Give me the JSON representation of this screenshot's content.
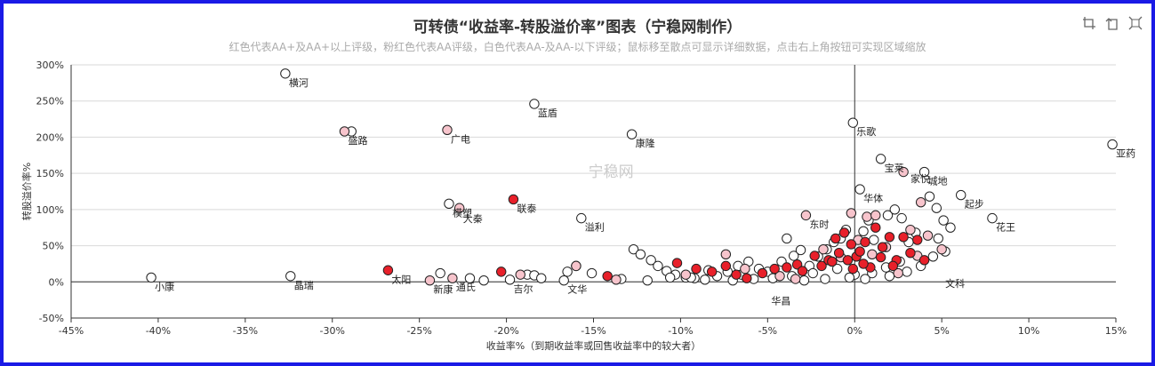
{
  "header": {
    "title": "可转债“收益率-转股溢价率”图表（宁稳网制作）",
    "subtitle": "红色代表AA+及AA+以上评级，粉红色代表AA评级，白色代表AA-及AA-以下评级；鼠标移至散点可显示详细数据，点击右上角按钮可实现区域缩放"
  },
  "toolbox": {
    "icons": [
      "zoom-area-icon",
      "zoom-reset-icon",
      "restore-icon"
    ]
  },
  "watermark": "宁稳网",
  "colors": {
    "aa_plus": "#e8202a",
    "aa": "#f7c4cc",
    "aa_minus": "#ffffff",
    "stroke": "#222222",
    "frame": "#1a1ae6"
  },
  "chart_data": {
    "type": "scatter",
    "xlabel": "收益率%（到期收益率或回售收益率中的较大者）",
    "ylabel": "转股溢价率%",
    "xlim": [
      -45,
      15
    ],
    "ylim": [
      -50,
      300
    ],
    "x_ticks": [
      "-45%",
      "-40%",
      "-35%",
      "-30%",
      "-25%",
      "-20%",
      "-15%",
      "-10%",
      "-5%",
      "0%",
      "5%",
      "10%",
      "15%"
    ],
    "y_ticks": [
      "300%",
      "250%",
      "200%",
      "150%",
      "100%",
      "50%",
      "0%",
      "-50%"
    ],
    "grid": true,
    "series": [
      {
        "rating": "AA+",
        "points": [
          [
            -26.8,
            16
          ],
          [
            -20.3,
            14
          ],
          [
            -19.6,
            114
          ],
          [
            -14.2,
            8
          ],
          [
            -10.2,
            26
          ],
          [
            -9.1,
            18
          ],
          [
            -8.2,
            14
          ],
          [
            -7.4,
            22
          ],
          [
            -6.8,
            10
          ],
          [
            -6.2,
            5
          ],
          [
            -5.3,
            12
          ],
          [
            -4.6,
            18
          ],
          [
            -3.9,
            20
          ],
          [
            -3.3,
            24
          ],
          [
            -3.0,
            15
          ],
          [
            -2.3,
            36
          ],
          [
            -1.9,
            22
          ],
          [
            -1.5,
            30
          ],
          [
            -1.1,
            60
          ],
          [
            -0.9,
            40
          ],
          [
            -0.6,
            68
          ],
          [
            -0.4,
            30
          ],
          [
            -0.2,
            52
          ],
          [
            0.1,
            35
          ],
          [
            0.3,
            42
          ],
          [
            0.6,
            55
          ],
          [
            0.9,
            20
          ],
          [
            1.2,
            75
          ],
          [
            1.6,
            48
          ],
          [
            2.0,
            62
          ],
          [
            2.4,
            30
          ],
          [
            2.8,
            62
          ],
          [
            3.2,
            40
          ],
          [
            3.6,
            58
          ],
          [
            4.0,
            30
          ],
          [
            0.5,
            25
          ],
          [
            -1.3,
            28
          ],
          [
            1.5,
            34
          ],
          [
            -0.1,
            18
          ],
          [
            2.2,
            22
          ]
        ]
      },
      {
        "rating": "AA",
        "points": [
          [
            -29.3,
            208
          ],
          [
            -23.4,
            210
          ],
          [
            -22.7,
            102
          ],
          [
            -24.4,
            2
          ],
          [
            -23.1,
            5
          ],
          [
            -19.2,
            10
          ],
          [
            -16.0,
            22
          ],
          [
            -13.7,
            3
          ],
          [
            -9.7,
            10
          ],
          [
            -7.4,
            38
          ],
          [
            -6.3,
            18
          ],
          [
            -4.3,
            8
          ],
          [
            -2.8,
            92
          ],
          [
            -1.8,
            45
          ],
          [
            -1.3,
            28
          ],
          [
            -0.2,
            95
          ],
          [
            0.7,
            90
          ],
          [
            1.2,
            92
          ],
          [
            1.8,
            48
          ],
          [
            2.8,
            152
          ],
          [
            3.2,
            72
          ],
          [
            3.8,
            110
          ],
          [
            4.2,
            64
          ],
          [
            5.0,
            45
          ],
          [
            0.2,
            58
          ],
          [
            -0.8,
            34
          ],
          [
            2.5,
            12
          ],
          [
            1.0,
            38
          ],
          [
            -3.4,
            4
          ],
          [
            3.6,
            36
          ]
        ]
      },
      {
        "rating": "AA-",
        "points": [
          [
            -40.4,
            6
          ],
          [
            -32.7,
            288
          ],
          [
            -32.4,
            8
          ],
          [
            -28.9,
            208
          ],
          [
            -23.3,
            108
          ],
          [
            -23.8,
            12
          ],
          [
            -22.1,
            5
          ],
          [
            -21.3,
            2
          ],
          [
            -19.8,
            3
          ],
          [
            -18.8,
            10
          ],
          [
            -18.4,
            9
          ],
          [
            -18.0,
            5
          ],
          [
            -16.5,
            14
          ],
          [
            -16.0,
            22
          ],
          [
            -15.1,
            12
          ],
          [
            -16.7,
            2
          ],
          [
            -12.7,
            45
          ],
          [
            -12.3,
            38
          ],
          [
            -11.7,
            30
          ],
          [
            -11.3,
            22
          ],
          [
            -10.8,
            15
          ],
          [
            -10.3,
            10
          ],
          [
            -9.7,
            6
          ],
          [
            -9.2,
            5
          ],
          [
            -8.6,
            3
          ],
          [
            -7.9,
            8
          ],
          [
            -7.3,
            14
          ],
          [
            -6.7,
            22
          ],
          [
            -6.1,
            28
          ],
          [
            -5.5,
            18
          ],
          [
            -5.0,
            14
          ],
          [
            -4.2,
            28
          ],
          [
            -3.9,
            60
          ],
          [
            -3.5,
            36
          ],
          [
            -3.1,
            44
          ],
          [
            -2.6,
            22
          ],
          [
            -2.1,
            35
          ],
          [
            -1.6,
            45
          ],
          [
            -1.2,
            55
          ],
          [
            -0.8,
            60
          ],
          [
            -0.5,
            72
          ],
          [
            -0.1,
            220
          ],
          [
            0.3,
            128
          ],
          [
            0.5,
            70
          ],
          [
            0.8,
            85
          ],
          [
            1.1,
            58
          ],
          [
            1.5,
            170
          ],
          [
            1.9,
            92
          ],
          [
            2.3,
            100
          ],
          [
            2.7,
            88
          ],
          [
            3.1,
            55
          ],
          [
            3.5,
            68
          ],
          [
            4.0,
            152
          ],
          [
            4.3,
            118
          ],
          [
            4.7,
            102
          ],
          [
            5.1,
            85
          ],
          [
            5.5,
            75
          ],
          [
            6.1,
            120
          ],
          [
            7.9,
            88
          ],
          [
            14.8,
            190
          ],
          [
            -18.4,
            246
          ],
          [
            -12.8,
            204
          ],
          [
            -15.7,
            88
          ],
          [
            -9.4,
            6
          ],
          [
            -6.5,
            10
          ],
          [
            -8.4,
            16
          ],
          [
            -4.7,
            5
          ],
          [
            -2.4,
            12
          ],
          [
            -1.0,
            18
          ],
          [
            0.0,
            10
          ],
          [
            1.0,
            12
          ],
          [
            2.0,
            8
          ],
          [
            3.0,
            14
          ],
          [
            3.8,
            22
          ],
          [
            4.5,
            35
          ],
          [
            -11.9,
            2
          ],
          [
            -13.4,
            4
          ],
          [
            -10.6,
            6
          ],
          [
            -7.0,
            2
          ],
          [
            -5.8,
            4
          ],
          [
            -3.6,
            8
          ],
          [
            -2.9,
            2
          ],
          [
            -1.7,
            4
          ],
          [
            -0.3,
            6
          ],
          [
            0.6,
            4
          ],
          [
            1.8,
            20
          ],
          [
            2.6,
            28
          ],
          [
            4.8,
            60
          ],
          [
            5.2,
            42
          ]
        ]
      }
    ],
    "labels": [
      {
        "text": "横河",
        "x": -32.7,
        "y": 288
      },
      {
        "text": "蓝盾",
        "x": -18.4,
        "y": 246
      },
      {
        "text": "盛路",
        "x": -29.3,
        "y": 208
      },
      {
        "text": "广电",
        "x": -23.4,
        "y": 210
      },
      {
        "text": "康隆",
        "x": -12.8,
        "y": 204
      },
      {
        "text": "乐歌",
        "x": -0.1,
        "y": 220
      },
      {
        "text": "亚药",
        "x": 14.8,
        "y": 190
      },
      {
        "text": "宝莱",
        "x": 1.5,
        "y": 170
      },
      {
        "text": "家悦",
        "x": 3.0,
        "y": 155
      },
      {
        "text": "城地",
        "x": 4.0,
        "y": 152
      },
      {
        "text": "华体",
        "x": 0.3,
        "y": 128
      },
      {
        "text": "起步",
        "x": 6.1,
        "y": 120
      },
      {
        "text": "花王",
        "x": 7.9,
        "y": 88
      },
      {
        "text": "联泰",
        "x": -19.6,
        "y": 114
      },
      {
        "text": "模塑",
        "x": -23.3,
        "y": 108
      },
      {
        "text": "大秦",
        "x": -22.7,
        "y": 100
      },
      {
        "text": "溢利",
        "x": -15.7,
        "y": 88
      },
      {
        "text": "东时",
        "x": -2.8,
        "y": 92
      },
      {
        "text": "小康",
        "x": -40.4,
        "y": 6
      },
      {
        "text": "晶瑞",
        "x": -32.4,
        "y": 8
      },
      {
        "text": "太阳",
        "x": -26.8,
        "y": 16
      },
      {
        "text": "新康",
        "x": -24.4,
        "y": 2
      },
      {
        "text": "通氏",
        "x": -23.1,
        "y": 5
      },
      {
        "text": "吉尔",
        "x": -19.8,
        "y": 3
      },
      {
        "text": "文华",
        "x": -16.7,
        "y": 2
      },
      {
        "text": "华昌",
        "x": -5.0,
        "y": -14
      },
      {
        "text": "文科",
        "x": 5.0,
        "y": 10
      }
    ]
  }
}
